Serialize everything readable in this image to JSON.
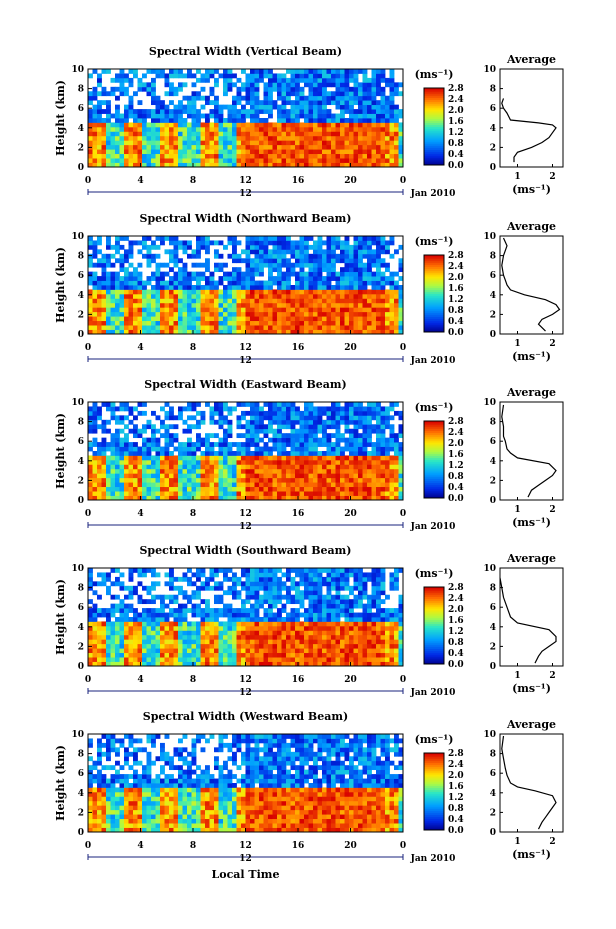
{
  "figure": {
    "xlabel": "Local Time",
    "date_label": "Jan 2010",
    "colorbar_unit": "(ms⁻¹)",
    "average_title": "Average",
    "average_xlabel": "(ms⁻¹)"
  },
  "chart_data": [
    {
      "type": "heatmap",
      "title": "Spectral Width (Vertical Beam)",
      "ylabel": "Height (km)",
      "x_ticks": [
        "0",
        "4",
        "8",
        "12",
        "16",
        "20",
        "0"
      ],
      "day_marker": "12",
      "y_ticks": [
        "0",
        "2",
        "4",
        "6",
        "8",
        "10"
      ],
      "xlim": [
        0,
        24
      ],
      "ylim": [
        0,
        10
      ],
      "colorbar": {
        "ticks": [
          "2.8",
          "2.4",
          "2.0",
          "1.6",
          "1.2",
          "0.8",
          "0.4",
          "0.0"
        ],
        "range": [
          0,
          2.8
        ]
      },
      "average_profile": {
        "title": "Average",
        "x_ticks": [
          "1",
          "2"
        ],
        "xlim": [
          0.5,
          2.3
        ],
        "y_ticks": [
          "0",
          "2",
          "4",
          "6",
          "8",
          "10"
        ],
        "width": [
          0.9,
          0.9,
          1.0,
          1.4,
          1.7,
          1.9,
          2.0,
          2.1,
          2.0,
          1.6,
          0.8,
          0.7,
          0.6,
          0.55,
          0.6
        ],
        "height": [
          0.5,
          1.0,
          1.5,
          2.0,
          2.5,
          3.0,
          3.5,
          4.0,
          4.3,
          4.5,
          4.8,
          5.5,
          6.0,
          6.5,
          7.0
        ]
      }
    },
    {
      "type": "heatmap",
      "title": "Spectral Width (Northward Beam)",
      "ylabel": "Height (km)",
      "x_ticks": [
        "0",
        "4",
        "8",
        "12",
        "16",
        "20",
        "0"
      ],
      "day_marker": "12",
      "y_ticks": [
        "0",
        "2",
        "4",
        "6",
        "8",
        "10"
      ],
      "xlim": [
        0,
        24
      ],
      "ylim": [
        0,
        10
      ],
      "colorbar": {
        "ticks": [
          "2.8",
          "2.4",
          "2.0",
          "1.6",
          "1.2",
          "0.8",
          "0.4",
          "0.0"
        ],
        "range": [
          0,
          2.8
        ]
      },
      "average_profile": {
        "title": "Average",
        "x_ticks": [
          "1",
          "2"
        ],
        "xlim": [
          0.5,
          2.3
        ],
        "y_ticks": [
          "0",
          "2",
          "4",
          "6",
          "8",
          "10"
        ],
        "width": [
          1.8,
          1.6,
          1.7,
          2.0,
          2.2,
          2.1,
          1.8,
          1.2,
          0.8,
          0.7,
          0.65,
          0.6,
          0.55,
          0.6,
          0.7,
          0.6
        ],
        "height": [
          0.3,
          1.0,
          1.5,
          2.0,
          2.5,
          3.0,
          3.5,
          4.0,
          4.5,
          5.0,
          5.5,
          6.0,
          7.0,
          8.0,
          9.0,
          9.8
        ]
      }
    },
    {
      "type": "heatmap",
      "title": "Spectral Width (Eastward Beam)",
      "ylabel": "Height (km)",
      "x_ticks": [
        "0",
        "4",
        "8",
        "12",
        "16",
        "20",
        "0"
      ],
      "day_marker": "12",
      "y_ticks": [
        "0",
        "2",
        "4",
        "6",
        "8",
        "10"
      ],
      "xlim": [
        0,
        24
      ],
      "ylim": [
        0,
        10
      ],
      "colorbar": {
        "ticks": [
          "2.8",
          "2.4",
          "2.0",
          "1.6",
          "1.2",
          "0.8",
          "0.4",
          "0.0"
        ],
        "range": [
          0,
          2.8
        ]
      },
      "average_profile": {
        "title": "Average",
        "x_ticks": [
          "1",
          "2"
        ],
        "xlim": [
          0.5,
          2.3
        ],
        "y_ticks": [
          "0",
          "2",
          "4",
          "6",
          "8",
          "10"
        ],
        "width": [
          1.3,
          1.4,
          1.6,
          1.8,
          2.0,
          2.1,
          1.9,
          1.0,
          0.8,
          0.7,
          0.65,
          0.6,
          0.6,
          0.55,
          0.6
        ],
        "height": [
          0.3,
          1.0,
          1.5,
          2.0,
          2.5,
          3.0,
          3.7,
          4.3,
          4.8,
          5.2,
          6.0,
          6.5,
          7.5,
          8.5,
          9.7
        ]
      }
    },
    {
      "type": "heatmap",
      "title": "Spectral Width (Southward Beam)",
      "ylabel": "Height (km)",
      "x_ticks": [
        "0",
        "4",
        "8",
        "12",
        "16",
        "20",
        "0"
      ],
      "day_marker": "12",
      "y_ticks": [
        "0",
        "2",
        "4",
        "6",
        "8",
        "10"
      ],
      "xlim": [
        0,
        24
      ],
      "ylim": [
        0,
        10
      ],
      "colorbar": {
        "ticks": [
          "2.8",
          "2.4",
          "2.0",
          "1.6",
          "1.2",
          "0.8",
          "0.4",
          "0.0"
        ],
        "range": [
          0,
          2.8
        ]
      },
      "average_profile": {
        "title": "Average",
        "x_ticks": [
          "1",
          "2"
        ],
        "xlim": [
          0.5,
          2.3
        ],
        "y_ticks": [
          "0",
          "2",
          "4",
          "6",
          "8",
          "10"
        ],
        "width": [
          1.5,
          1.6,
          1.7,
          1.9,
          2.1,
          2.1,
          1.9,
          1.0,
          0.8,
          0.7,
          0.6,
          0.55,
          0.5
        ],
        "height": [
          0.3,
          1.0,
          1.5,
          2.0,
          2.5,
          3.0,
          3.7,
          4.4,
          5.0,
          6.0,
          7.0,
          8.0,
          9.0
        ]
      }
    },
    {
      "type": "heatmap",
      "title": "Spectral Width (Westward Beam)",
      "ylabel": "Height (km)",
      "x_ticks": [
        "0",
        "4",
        "8",
        "12",
        "16",
        "20",
        "0"
      ],
      "day_marker": "12",
      "y_ticks": [
        "0",
        "2",
        "4",
        "6",
        "8",
        "10"
      ],
      "xlim": [
        0,
        24
      ],
      "ylim": [
        0,
        10
      ],
      "colorbar": {
        "ticks": [
          "2.8",
          "2.4",
          "2.0",
          "1.6",
          "1.2",
          "0.8",
          "0.4",
          "0.0"
        ],
        "range": [
          0,
          2.8
        ]
      },
      "average_profile": {
        "title": "Average",
        "x_ticks": [
          "1",
          "2"
        ],
        "xlim": [
          0.5,
          2.3
        ],
        "y_ticks": [
          "0",
          "2",
          "4",
          "6",
          "8",
          "10"
        ],
        "width": [
          1.6,
          1.7,
          1.8,
          1.9,
          2.0,
          2.1,
          2.0,
          1.5,
          1.0,
          0.8,
          0.7,
          0.65,
          0.6,
          0.55,
          0.6
        ],
        "height": [
          0.3,
          1.0,
          1.5,
          2.0,
          2.5,
          3.0,
          3.7,
          4.2,
          4.6,
          5.0,
          5.8,
          6.5,
          7.5,
          8.5,
          9.8
        ]
      }
    }
  ]
}
